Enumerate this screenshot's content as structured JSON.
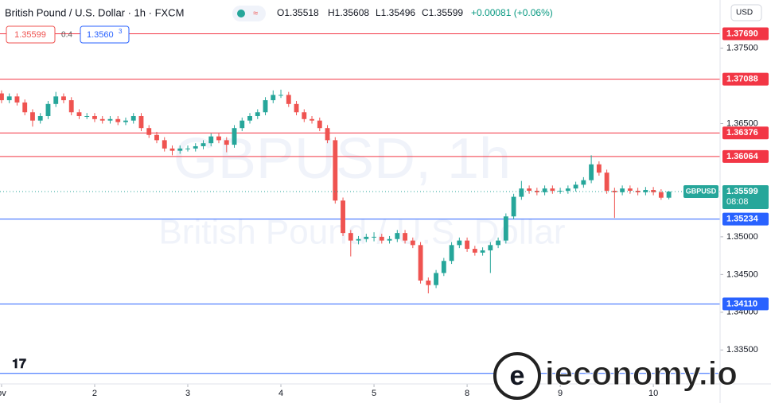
{
  "header": {
    "title": "British Pound / U.S. Dollar · 1h · FXCM",
    "ohlc": [
      "O1.35518",
      "H1.35608",
      "L1.35496",
      "C1.35599",
      "+0.00081 (+0.06%)"
    ],
    "sell": "1.35599",
    "spread": "0.4",
    "buy": "1.3560",
    "buy_pip": "3",
    "currency": "USD"
  },
  "watermark": {
    "symbol": "GBPUSD, 1h",
    "name": "British Pound / U.S. Dollar"
  },
  "logo": "ieconomy.io",
  "chart_data": {
    "type": "candlestick",
    "symbol": "GBPUSD",
    "countdown": "08:08",
    "up_color": "#26a69a",
    "down_color": "#ef5350",
    "xlim": [
      -0.2,
      92.6
    ],
    "xticks": [
      {
        "value": 0,
        "label": "ov"
      },
      {
        "value": 12,
        "label": "2"
      },
      {
        "value": 24,
        "label": "3"
      },
      {
        "value": 36,
        "label": "4"
      },
      {
        "value": 48,
        "label": "5"
      },
      {
        "value": 60,
        "label": "8"
      },
      {
        "value": 72,
        "label": "9"
      },
      {
        "value": 84,
        "label": "10"
      }
    ],
    "ylim": [
      1.3305,
      1.38138
    ],
    "yticks": [
      {
        "value": 1.375,
        "label": "1.37500"
      },
      {
        "value": 1.365,
        "label": "1.36500"
      },
      {
        "value": 1.35,
        "label": "1.35000"
      },
      {
        "value": 1.345,
        "label": "1.34500"
      },
      {
        "value": 1.34,
        "label": "1.34000"
      },
      {
        "value": 1.335,
        "label": "1.33500"
      }
    ],
    "levels": [
      {
        "value": 1.3769,
        "label": "1.37690",
        "color": "#f23645"
      },
      {
        "value": 1.37088,
        "label": "1.37088",
        "color": "#f23645"
      },
      {
        "value": 1.36376,
        "label": "1.36376",
        "color": "#f23645"
      },
      {
        "value": 1.36064,
        "label": "1.36064",
        "color": "#f23645"
      },
      {
        "value": 1.35234,
        "label": "1.35234",
        "color": "#2962ff"
      },
      {
        "value": 1.3411,
        "label": "1.34110",
        "color": "#2962ff"
      },
      {
        "value": 1.3319,
        "color": "#2962ff"
      }
    ],
    "ohlc": [
      [
        1.369,
        1.3694,
        1.3677,
        1.3681
      ],
      [
        1.3681,
        1.369,
        1.3677,
        1.3686
      ],
      [
        1.3686,
        1.369,
        1.3674,
        1.3678
      ],
      [
        1.3678,
        1.3682,
        1.3661,
        1.3665
      ],
      [
        1.3665,
        1.3669,
        1.3646,
        1.3654
      ],
      [
        1.3654,
        1.3664,
        1.365,
        1.366
      ],
      [
        1.366,
        1.368,
        1.3656,
        1.3676
      ],
      [
        1.3676,
        1.3692,
        1.3672,
        1.3686
      ],
      [
        1.3686,
        1.369,
        1.3677,
        1.3681
      ],
      [
        1.3681,
        1.3685,
        1.3661,
        1.3665
      ],
      [
        1.3665,
        1.3669,
        1.3656,
        1.366
      ],
      [
        1.366,
        1.3664,
        1.3656,
        1.366
      ],
      [
        1.366,
        1.3664,
        1.3652,
        1.3656
      ],
      [
        1.3656,
        1.366,
        1.365,
        1.3654
      ],
      [
        1.3654,
        1.366,
        1.365,
        1.3656
      ],
      [
        1.3656,
        1.366,
        1.3648,
        1.3652
      ],
      [
        1.3652,
        1.3658,
        1.3648,
        1.3654
      ],
      [
        1.3654,
        1.3664,
        1.365,
        1.366
      ],
      [
        1.366,
        1.3664,
        1.364,
        1.3644
      ],
      [
        1.3644,
        1.3648,
        1.3631,
        1.3635
      ],
      [
        1.3635,
        1.3639,
        1.3624,
        1.3628
      ],
      [
        1.3628,
        1.3632,
        1.3613,
        1.3617
      ],
      [
        1.3617,
        1.3621,
        1.3608,
        1.3614
      ],
      [
        1.3614,
        1.3621,
        1.361,
        1.3617
      ],
      [
        1.3617,
        1.3621,
        1.3613,
        1.3617
      ],
      [
        1.3617,
        1.3624,
        1.3613,
        1.362
      ],
      [
        1.362,
        1.3628,
        1.3616,
        1.3624
      ],
      [
        1.3624,
        1.3637,
        1.362,
        1.3633
      ],
      [
        1.3633,
        1.3637,
        1.3624,
        1.3628
      ],
      [
        1.3628,
        1.3632,
        1.3612,
        1.3622
      ],
      [
        1.3622,
        1.3648,
        1.3618,
        1.3644
      ],
      [
        1.3644,
        1.3658,
        1.364,
        1.3654
      ],
      [
        1.3654,
        1.3664,
        1.365,
        1.366
      ],
      [
        1.366,
        1.3669,
        1.3656,
        1.3665
      ],
      [
        1.3665,
        1.3685,
        1.3661,
        1.3681
      ],
      [
        1.3681,
        1.3694,
        1.3677,
        1.3688
      ],
      [
        1.3688,
        1.3695,
        1.3684,
        1.3688
      ],
      [
        1.3688,
        1.3692,
        1.3672,
        1.3676
      ],
      [
        1.3676,
        1.368,
        1.3661,
        1.3665
      ],
      [
        1.3665,
        1.3669,
        1.3652,
        1.3656
      ],
      [
        1.3656,
        1.366,
        1.365,
        1.3654
      ],
      [
        1.3654,
        1.3658,
        1.364,
        1.3644
      ],
      [
        1.3644,
        1.3648,
        1.3624,
        1.3628
      ],
      [
        1.3628,
        1.3632,
        1.3544,
        1.3548
      ],
      [
        1.3548,
        1.3552,
        1.3501,
        1.3505
      ],
      [
        1.3505,
        1.3509,
        1.3474,
        1.3495
      ],
      [
        1.3495,
        1.3501,
        1.349,
        1.3497
      ],
      [
        1.3497,
        1.3504,
        1.3493,
        1.35
      ],
      [
        1.35,
        1.3506,
        1.3494,
        1.35
      ],
      [
        1.35,
        1.3504,
        1.3491,
        1.3495
      ],
      [
        1.3495,
        1.3501,
        1.3491,
        1.3497
      ],
      [
        1.3497,
        1.3509,
        1.3493,
        1.3505
      ],
      [
        1.3505,
        1.3509,
        1.3491,
        1.3495
      ],
      [
        1.3495,
        1.3499,
        1.3485,
        1.3489
      ],
      [
        1.3489,
        1.3493,
        1.3438,
        1.3442
      ],
      [
        1.3442,
        1.3446,
        1.3425,
        1.3436
      ],
      [
        1.3436,
        1.3456,
        1.3432,
        1.3452
      ],
      [
        1.3452,
        1.3472,
        1.3448,
        1.3468
      ],
      [
        1.3468,
        1.3493,
        1.3464,
        1.3489
      ],
      [
        1.3489,
        1.3499,
        1.3485,
        1.3495
      ],
      [
        1.3495,
        1.3499,
        1.348,
        1.3484
      ],
      [
        1.3484,
        1.3488,
        1.3475,
        1.3479
      ],
      [
        1.3479,
        1.3486,
        1.3475,
        1.3482
      ],
      [
        1.3482,
        1.3493,
        1.3452,
        1.3489
      ],
      [
        1.3489,
        1.3499,
        1.3485,
        1.3495
      ],
      [
        1.3495,
        1.3531,
        1.3491,
        1.3527
      ],
      [
        1.3527,
        1.3557,
        1.3523,
        1.3553
      ],
      [
        1.3553,
        1.3574,
        1.3549,
        1.3564
      ],
      [
        1.3564,
        1.3568,
        1.3557,
        1.3561
      ],
      [
        1.3561,
        1.3565,
        1.3555,
        1.3559
      ],
      [
        1.3559,
        1.3568,
        1.3555,
        1.3564
      ],
      [
        1.3564,
        1.3568,
        1.3557,
        1.3561
      ],
      [
        1.3561,
        1.3565,
        1.3557,
        1.3561
      ],
      [
        1.3561,
        1.3568,
        1.3557,
        1.3564
      ],
      [
        1.3564,
        1.3573,
        1.356,
        1.3569
      ],
      [
        1.3569,
        1.3579,
        1.3565,
        1.3575
      ],
      [
        1.3575,
        1.3608,
        1.3571,
        1.3596
      ],
      [
        1.3596,
        1.36,
        1.3581,
        1.3585
      ],
      [
        1.3585,
        1.3589,
        1.3557,
        1.3561
      ],
      [
        1.3561,
        1.3565,
        1.3525,
        1.3559
      ],
      [
        1.3559,
        1.3568,
        1.3555,
        1.3564
      ],
      [
        1.3564,
        1.3568,
        1.3557,
        1.3561
      ],
      [
        1.3561,
        1.3565,
        1.3555,
        1.3559
      ],
      [
        1.3559,
        1.3566,
        1.3555,
        1.3562
      ],
      [
        1.3562,
        1.3566,
        1.3555,
        1.3559
      ],
      [
        1.3559,
        1.3563,
        1.3549,
        1.35518
      ],
      [
        1.35518,
        1.35608,
        1.35496,
        1.35599
      ]
    ]
  }
}
